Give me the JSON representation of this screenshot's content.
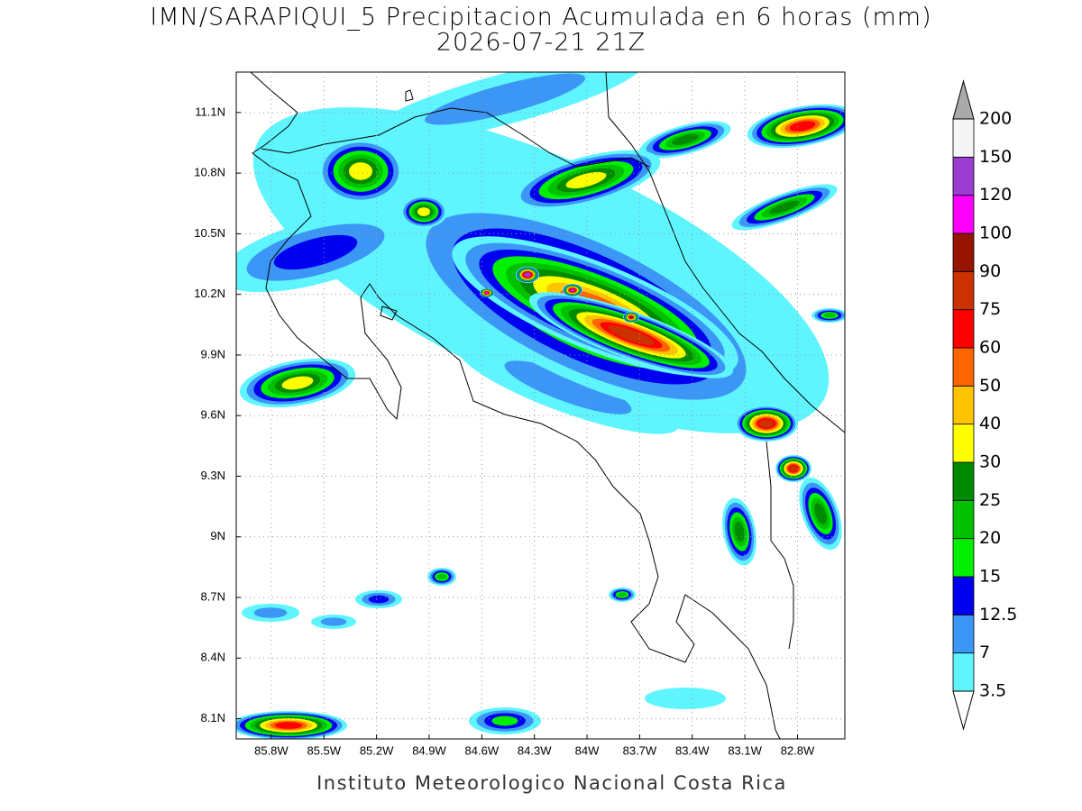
{
  "title": "IMN/SARAPIQUI_5 Precipitacion Acumulada en 6 horas (mm)",
  "subtitle": "2026-07-21 21Z",
  "footer": "Instituto Meteorologico Nacional Costa Rica",
  "map": {
    "xlim": [
      -86.0,
      -82.53
    ],
    "ylim": [
      8.0,
      11.3
    ],
    "grid": true,
    "xticks": [
      {
        "value": -85.8,
        "label": "85.8W"
      },
      {
        "value": -85.5,
        "label": "85.5W"
      },
      {
        "value": -85.2,
        "label": "85.2W"
      },
      {
        "value": -84.9,
        "label": "84.9W"
      },
      {
        "value": -84.6,
        "label": "84.6W"
      },
      {
        "value": -84.3,
        "label": "84.3W"
      },
      {
        "value": -84.0,
        "label": "84W"
      },
      {
        "value": -83.7,
        "label": "83.7W"
      },
      {
        "value": -83.4,
        "label": "83.4W"
      },
      {
        "value": -83.1,
        "label": "83.1W"
      },
      {
        "value": -82.8,
        "label": "82.8W"
      }
    ],
    "yticks": [
      {
        "value": 8.1,
        "label": "8.1N"
      },
      {
        "value": 8.4,
        "label": "8.4N"
      },
      {
        "value": 8.7,
        "label": "8.7N"
      },
      {
        "value": 9.0,
        "label": "9N"
      },
      {
        "value": 9.3,
        "label": "9.3N"
      },
      {
        "value": 9.6,
        "label": "9.6N"
      },
      {
        "value": 9.9,
        "label": "9.9N"
      },
      {
        "value": 10.2,
        "label": "10.2N"
      },
      {
        "value": 10.5,
        "label": "10.5N"
      },
      {
        "value": 10.8,
        "label": "10.8N"
      },
      {
        "value": 11.1,
        "label": "11.1N"
      }
    ]
  },
  "colorbar": {
    "levels": [
      3.5,
      7,
      12.5,
      15,
      20,
      25,
      30,
      40,
      50,
      60,
      75,
      90,
      100,
      120,
      150,
      200
    ],
    "colors": [
      "#5ff5ff",
      "#3c96f5",
      "#0000f0",
      "#00f000",
      "#00c000",
      "#008a00",
      "#ffff00",
      "#ffc400",
      "#ff6400",
      "#ff0000",
      "#cc3200",
      "#961400",
      "#ff00ff",
      "#9b3cd2",
      "#f5f5f5"
    ],
    "under_color": "#ffffff",
    "over_color": "#aaaaaa"
  }
}
